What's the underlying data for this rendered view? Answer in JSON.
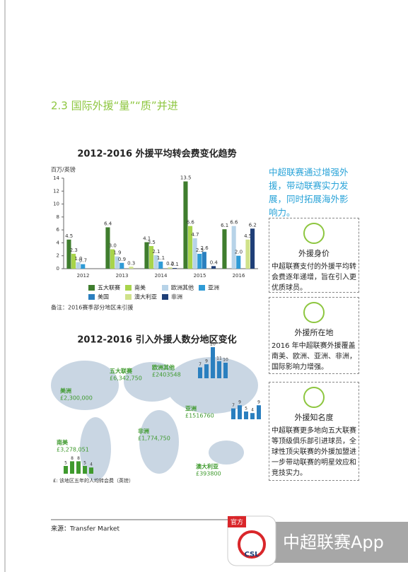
{
  "section_title": "2.3 国际外援“量”“质”并进",
  "chart_data": {
    "type": "bar",
    "title": "2012-2016 外援平均转会费变化趋势",
    "y_label": "百万/英镑",
    "categories": [
      "2012",
      "2013",
      "2014",
      "2015",
      "2016"
    ],
    "series": [
      {
        "name": "五大联赛",
        "color": "#3f7d2e",
        "values": [
          4.5,
          6.4,
          4.1,
          13.5,
          6.1
        ],
        "value_labels": [
          "4.5",
          "6.4",
          "4.1",
          "13.5",
          "6.1"
        ]
      },
      {
        "name": "南美",
        "color": "#a8d44b",
        "values": [
          2.3,
          3.0,
          3.5,
          6.6,
          null
        ],
        "value_labels": [
          "2.3",
          "3.0",
          "3.5",
          "6.6",
          null
        ]
      },
      {
        "name": "欧洲其他",
        "color": "#b7d3e8",
        "values": [
          1.0,
          1.9,
          2.1,
          4.7,
          6.6
        ],
        "value_labels": [
          "1.0",
          "1.9",
          "2.1",
          "4.7",
          "6.6"
        ]
      },
      {
        "name": "亚洲",
        "color": "#2f9bd6",
        "values": [
          0.7,
          0.9,
          1.1,
          2.3,
          2.0
        ],
        "value_labels": [
          "0.7",
          "0.9",
          "1.1",
          "2.3",
          "2.0"
        ]
      },
      {
        "name": "美国",
        "color": "#2a7fbf",
        "values": [
          null,
          null,
          null,
          2.6,
          null
        ],
        "value_labels": [
          null,
          null,
          null,
          "2.6",
          null
        ]
      },
      {
        "name": "澳大利亚",
        "color": "#d0e28a",
        "values": [
          null,
          0.3,
          0.2,
          null,
          4.5
        ],
        "value_labels": [
          null,
          "0.3",
          "0.2",
          null,
          "4.5"
        ]
      },
      {
        "name": "非洲",
        "color": "#1f3f77",
        "values": [
          null,
          null,
          0.1,
          0.4,
          6.2
        ],
        "value_labels": [
          null,
          null,
          "0.1",
          "0.4",
          "6.2"
        ]
      }
    ],
    "ylim": [
      0,
      14
    ],
    "yticks": [
      0,
      2,
      4,
      6,
      8,
      10,
      12,
      14
    ],
    "note": "备注：2016赛季部分地区未引援"
  },
  "map": {
    "title": "2012-2016 引入外援人数分地区变化",
    "regions": [
      {
        "name": "五大联赛",
        "fee": "£6,342,750"
      },
      {
        "name": "欧洲其他",
        "fee": "£2403548",
        "counts": [
          7,
          9,
          20,
          11,
          10
        ]
      },
      {
        "name": "美洲",
        "fee": "£2,300,000"
      },
      {
        "name": "亚洲",
        "fee": "£1516760",
        "counts": [
          7,
          9,
          5,
          4,
          9
        ]
      },
      {
        "name": "非洲",
        "fee": "£1,774,750"
      },
      {
        "name": "南美",
        "fee": "£3,278,051",
        "counts": [
          5,
          8,
          8,
          5,
          4
        ]
      },
      {
        "name": "澳大利亚",
        "fee": "£393800"
      }
    ],
    "footnote": "£: 该地区五年的人均转会费（英镑）"
  },
  "sidebar": {
    "headline": "中超联赛通过增强外援，带动联赛实力发展，同时拓展海外影响力。",
    "boxes": [
      {
        "title": "外援身价",
        "text": "中超联赛支付的外援平均转会费逐年递增，旨在引入更优质球员。"
      },
      {
        "title": "外援所在地",
        "text": "2016 年中超联赛外援覆盖南美、欧洲、亚洲、非洲，国际影响力增强。"
      },
      {
        "title": "外援知名度",
        "text": "中超联赛更多地向五大联赛等顶级俱乐部引进球员，全球性顶尖联赛的外援加盟进一步带动联赛的明星效应和竞技实力。"
      }
    ]
  },
  "footer": {
    "source": "来源：Transfer Market",
    "badge": "官方",
    "logo": "CSL",
    "app": "中超联赛App"
  }
}
